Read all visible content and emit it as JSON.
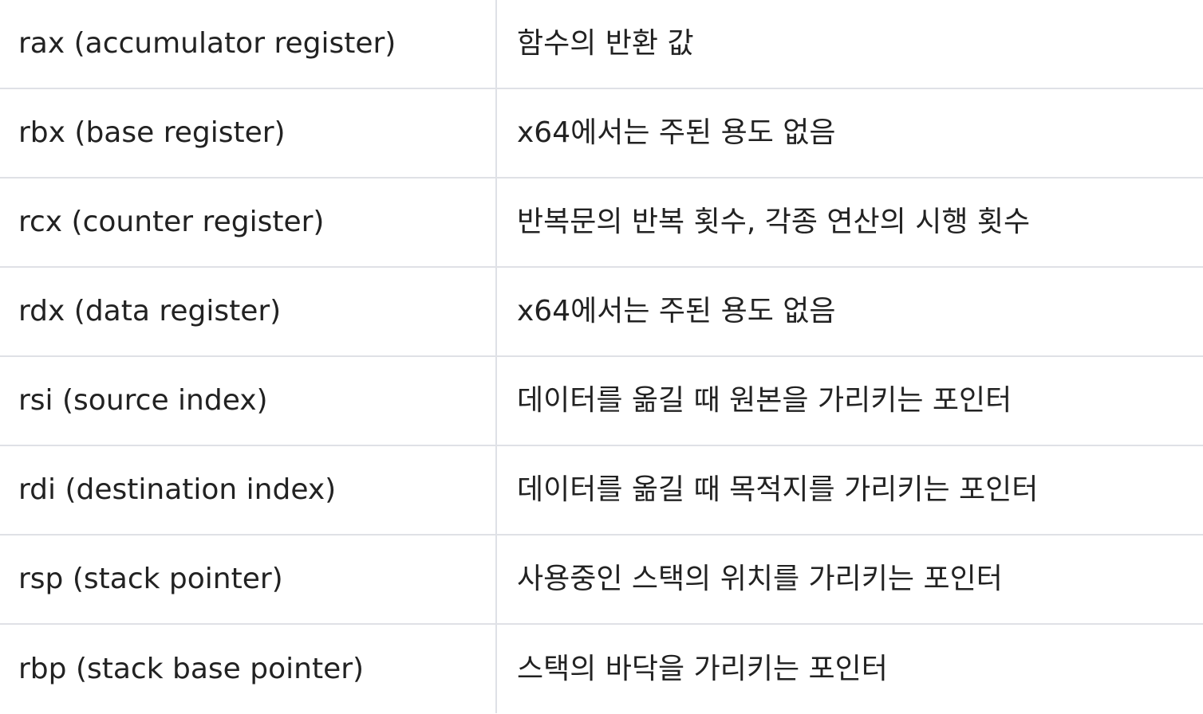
{
  "table": {
    "rows": [
      {
        "register": "rax (accumulator register)",
        "description": "함수의 반환 값"
      },
      {
        "register": "rbx (base register)",
        "description": "x64에서는 주된 용도 없음"
      },
      {
        "register": "rcx (counter register)",
        "description": "반복문의 반복 횟수, 각종 연산의 시행 횟수"
      },
      {
        "register": "rdx (data register)",
        "description": "x64에서는 주된 용도 없음"
      },
      {
        "register": "rsi (source index)",
        "description": "데이터를 옮길 때 원본을 가리키는 포인터"
      },
      {
        "register": "rdi (destination index)",
        "description": "데이터를 옮길 때 목적지를 가리키는 포인터"
      },
      {
        "register": "rsp (stack pointer)",
        "description": "사용중인 스택의 위치를 가리키는 포인터"
      },
      {
        "register": "rbp (stack base pointer)",
        "description": "스택의 바닥을 가리키는 포인터"
      }
    ]
  }
}
